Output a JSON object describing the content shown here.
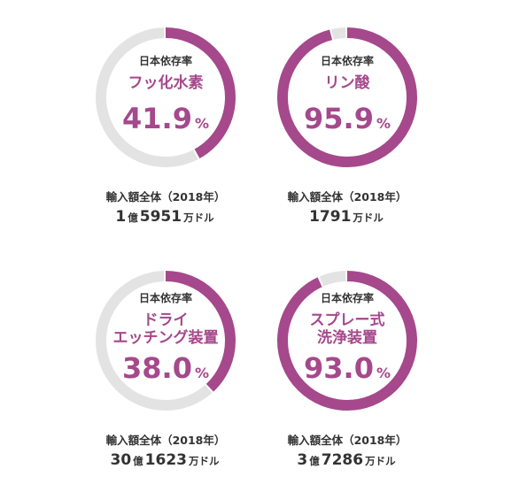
{
  "chart_data": [
    {
      "type": "pie",
      "label": "日本依存率",
      "item_lines": [
        "フッ化水素"
      ],
      "value": 41.9,
      "unit": "%",
      "total_label": "輸入額全体（2018年）",
      "total_parts": [
        {
          "text": "1",
          "size": "big"
        },
        {
          "text": "億",
          "size": "small"
        },
        {
          "text": "5951",
          "size": "big"
        },
        {
          "text": "万ドル",
          "size": "small"
        }
      ]
    },
    {
      "type": "pie",
      "label": "日本依存率",
      "item_lines": [
        "リン酸"
      ],
      "value": 95.9,
      "unit": "%",
      "total_label": "輸入額全体（2018年）",
      "total_parts": [
        {
          "text": "1791",
          "size": "big"
        },
        {
          "text": "万ドル",
          "size": "small"
        }
      ]
    },
    {
      "type": "pie",
      "label": "日本依存率",
      "item_lines": [
        "ドライ",
        "エッチング装置"
      ],
      "value": 38.0,
      "unit": "%",
      "total_label": "輸入額全体（2018年）",
      "total_parts": [
        {
          "text": "30",
          "size": "big"
        },
        {
          "text": "億",
          "size": "small"
        },
        {
          "text": "1623",
          "size": "big"
        },
        {
          "text": "万ドル",
          "size": "small"
        }
      ]
    },
    {
      "type": "pie",
      "label": "日本依存率",
      "item_lines": [
        "スプレー式",
        "洗浄装置"
      ],
      "value": 93.0,
      "unit": "%",
      "total_label": "輸入額全体（2018年）",
      "total_parts": [
        {
          "text": "3",
          "size": "big"
        },
        {
          "text": "億",
          "size": "small"
        },
        {
          "text": "7286",
          "size": "big"
        },
        {
          "text": "万ドル",
          "size": "small"
        }
      ]
    }
  ],
  "colors": {
    "accent": "#a5488c",
    "track": "#e3e3e3",
    "text": "#333333"
  }
}
